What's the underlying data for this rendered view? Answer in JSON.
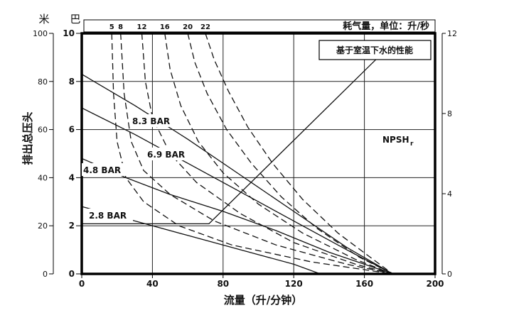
{
  "chart_data": {
    "type": "line",
    "unit_labels": {
      "meter": "米",
      "bar": "巴"
    },
    "air_header": "耗气量，单位：升/秒",
    "note": "基于室温下水的性能",
    "xlabel": "流量（升/分钟）",
    "ylabel": "排出总压头",
    "x_ticks": [
      0,
      40,
      80,
      120,
      160,
      200
    ],
    "meter_ticks": [
      0,
      20,
      40,
      60,
      80,
      100
    ],
    "bar_ticks": [
      0,
      2,
      4,
      6,
      8,
      10
    ],
    "npsh_ticks": [
      0,
      4,
      8,
      12
    ],
    "xlim": [
      0,
      200
    ],
    "ylim_bar": [
      0,
      10
    ],
    "ylim_npsh": [
      0,
      12
    ],
    "grid": true,
    "air_labels": [
      "5",
      "8",
      "12",
      "16",
      "20",
      "22"
    ],
    "pressure_curves": [
      {
        "name": "8.3 BAR",
        "points": [
          [
            0,
            8.3
          ],
          [
            30,
            7.0
          ],
          [
            60,
            5.6
          ],
          [
            90,
            4.1
          ],
          [
            120,
            2.6
          ],
          [
            150,
            1.1
          ],
          [
            176,
            0
          ]
        ]
      },
      {
        "name": "6.9 BAR",
        "points": [
          [
            0,
            6.9
          ],
          [
            30,
            5.8
          ],
          [
            60,
            4.6
          ],
          [
            90,
            3.4
          ],
          [
            120,
            2.2
          ],
          [
            150,
            1.0
          ],
          [
            176,
            0
          ]
        ]
      },
      {
        "name": "4.8 BAR",
        "points": [
          [
            0,
            4.8
          ],
          [
            25,
            4.0
          ],
          [
            50,
            3.3
          ],
          [
            80,
            2.6
          ],
          [
            110,
            1.8
          ],
          [
            140,
            0.9
          ],
          [
            176,
            0
          ]
        ]
      },
      {
        "name": "2.8 BAR",
        "points": [
          [
            0,
            2.8
          ],
          [
            30,
            2.2
          ],
          [
            60,
            1.6
          ],
          [
            90,
            1.0
          ],
          [
            120,
            0.4
          ],
          [
            135,
            0
          ]
        ]
      }
    ],
    "air_curves": [
      {
        "name": "5",
        "points": [
          [
            17,
            10.0
          ],
          [
            18,
            7.5
          ],
          [
            20,
            5.5
          ],
          [
            25,
            4.0
          ],
          [
            35,
            3.0
          ],
          [
            55,
            2.0
          ],
          [
            85,
            1.2
          ],
          [
            130,
            0.5
          ],
          [
            176,
            0
          ]
        ]
      },
      {
        "name": "8",
        "points": [
          [
            22,
            10.0
          ],
          [
            24,
            7.5
          ],
          [
            28,
            5.5
          ],
          [
            35,
            4.3
          ],
          [
            50,
            3.3
          ],
          [
            75,
            2.2
          ],
          [
            110,
            1.2
          ],
          [
            150,
            0.4
          ],
          [
            176,
            0
          ]
        ]
      },
      {
        "name": "12",
        "points": [
          [
            34,
            10.0
          ],
          [
            36,
            8.0
          ],
          [
            40,
            6.5
          ],
          [
            50,
            5.0
          ],
          [
            65,
            3.8
          ],
          [
            90,
            2.5
          ],
          [
            120,
            1.3
          ],
          [
            155,
            0.4
          ],
          [
            176,
            0
          ]
        ]
      },
      {
        "name": "16",
        "points": [
          [
            47,
            10.0
          ],
          [
            50,
            8.5
          ],
          [
            56,
            7.0
          ],
          [
            66,
            5.5
          ],
          [
            80,
            4.2
          ],
          [
            100,
            2.9
          ],
          [
            125,
            1.7
          ],
          [
            155,
            0.6
          ],
          [
            176,
            0
          ]
        ]
      },
      {
        "name": "20",
        "points": [
          [
            60,
            10.0
          ],
          [
            64,
            8.8
          ],
          [
            71,
            7.5
          ],
          [
            82,
            6.0
          ],
          [
            96,
            4.6
          ],
          [
            113,
            3.2
          ],
          [
            133,
            1.9
          ],
          [
            157,
            0.7
          ],
          [
            176,
            0
          ]
        ]
      },
      {
        "name": "22",
        "points": [
          [
            70,
            10.0
          ],
          [
            75,
            8.9
          ],
          [
            83,
            7.6
          ],
          [
            94,
            6.1
          ],
          [
            108,
            4.6
          ],
          [
            125,
            3.1
          ],
          [
            145,
            1.7
          ],
          [
            165,
            0.6
          ],
          [
            176,
            0
          ]
        ]
      }
    ],
    "npsh": {
      "name": "NPSH",
      "name_sub": "r",
      "points": [
        [
          0,
          2.5
        ],
        [
          72,
          2.5
        ],
        [
          170,
          11.0
        ]
      ]
    }
  }
}
